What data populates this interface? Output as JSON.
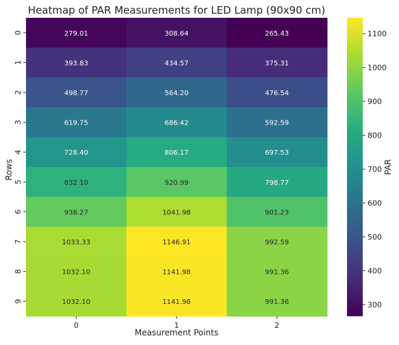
{
  "chart_data": {
    "type": "heatmap",
    "title": "Heatmap of PAR Measurements for LED Lamp (90x90 cm)",
    "xlabel": "Measurement Points",
    "ylabel": "Rows",
    "x_categories": [
      "0",
      "1",
      "2"
    ],
    "y_categories": [
      "0",
      "1",
      "2",
      "3",
      "4",
      "5",
      "6",
      "7",
      "8",
      "9"
    ],
    "values": [
      [
        279.01,
        308.64,
        265.43
      ],
      [
        393.83,
        434.57,
        375.31
      ],
      [
        498.77,
        564.2,
        476.54
      ],
      [
        619.75,
        686.42,
        592.59
      ],
      [
        728.4,
        806.17,
        697.53
      ],
      [
        832.1,
        920.99,
        798.77
      ],
      [
        938.27,
        1041.98,
        901.23
      ],
      [
        1033.33,
        1146.91,
        992.59
      ],
      [
        1032.1,
        1141.98,
        991.36
      ],
      [
        1032.1,
        1141.98,
        991.36
      ]
    ],
    "cell_labels": [
      [
        "279.01",
        "308.64",
        "265.43"
      ],
      [
        "393.83",
        "434.57",
        "375.31"
      ],
      [
        "498.77",
        "564.20",
        "476.54"
      ],
      [
        "619.75",
        "686.42",
        "592.59"
      ],
      [
        "728.40",
        "806.17",
        "697.53"
      ],
      [
        "832.10",
        "920.99",
        "798.77"
      ],
      [
        "938.27",
        "1041.98",
        "901.23"
      ],
      [
        "1033.33",
        "1146.91",
        "992.59"
      ],
      [
        "1032.10",
        "1141.98",
        "991.36"
      ],
      [
        "1032.10",
        "1141.98",
        "991.36"
      ]
    ],
    "colormap": "viridis",
    "colorbar": {
      "label": "PAR",
      "range": [
        265.43,
        1146.91
      ],
      "ticks": [
        300,
        400,
        500,
        600,
        700,
        800,
        900,
        1000,
        1100
      ],
      "tick_labels": [
        "300",
        "400",
        "500",
        "600",
        "700",
        "800",
        "900",
        "1000",
        "1100"
      ]
    },
    "grid": false,
    "legend": "colorbar right"
  }
}
